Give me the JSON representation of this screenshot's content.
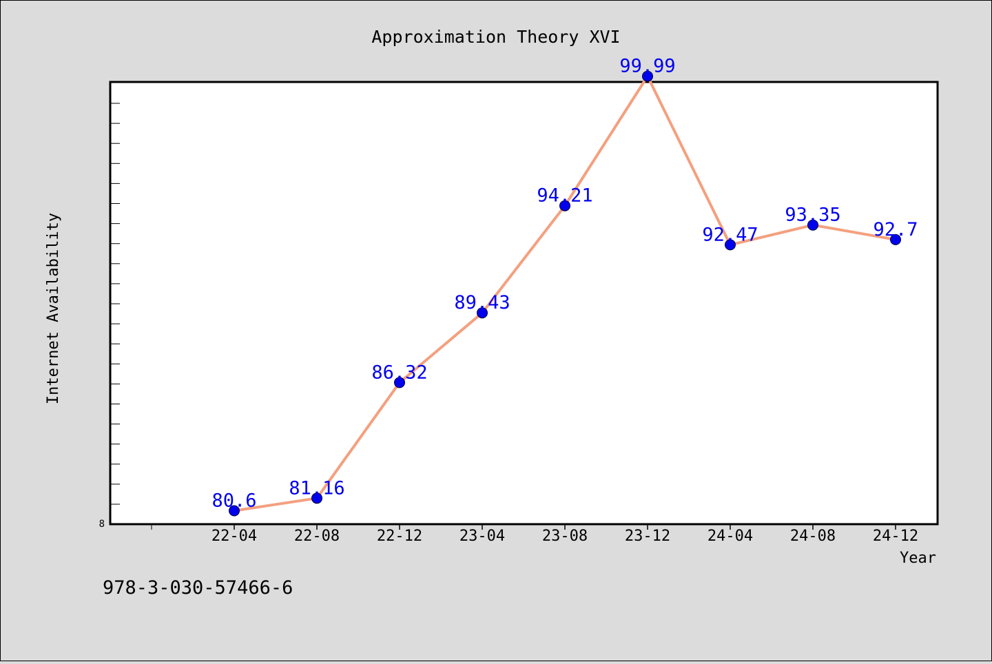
{
  "chart_data": {
    "type": "line",
    "title": "Approximation Theory XVI",
    "xlabel": "Year",
    "ylabel": "Internet Availability",
    "categories": [
      "22-04",
      "22-08",
      "22-12",
      "23-04",
      "23-08",
      "23-12",
      "24-04",
      "24-08",
      "24-12"
    ],
    "series": [
      {
        "values": [
          80.6,
          81.16,
          86.32,
          89.43,
          94.21,
          99.99,
          92.47,
          93.35,
          92.7
        ],
        "value_labels": [
          "80.6",
          "81.16",
          "86.32",
          "89.43",
          "94.21",
          "99.99",
          "92.47",
          "93.35",
          "92.7"
        ],
        "line_color": "#f4a07f",
        "marker_color": "#0000ee",
        "label_color": "#0000ee"
      }
    ],
    "ylim": [
      80,
      101
    ],
    "y_tick_labels": [
      "8"
    ],
    "grid": false,
    "legend": "none"
  },
  "footer": {
    "isbn": "978-3-030-57466-6"
  },
  "colors": {
    "background": "#dcdcdc",
    "plot_background": "#ffffff",
    "axis": "#000000"
  }
}
